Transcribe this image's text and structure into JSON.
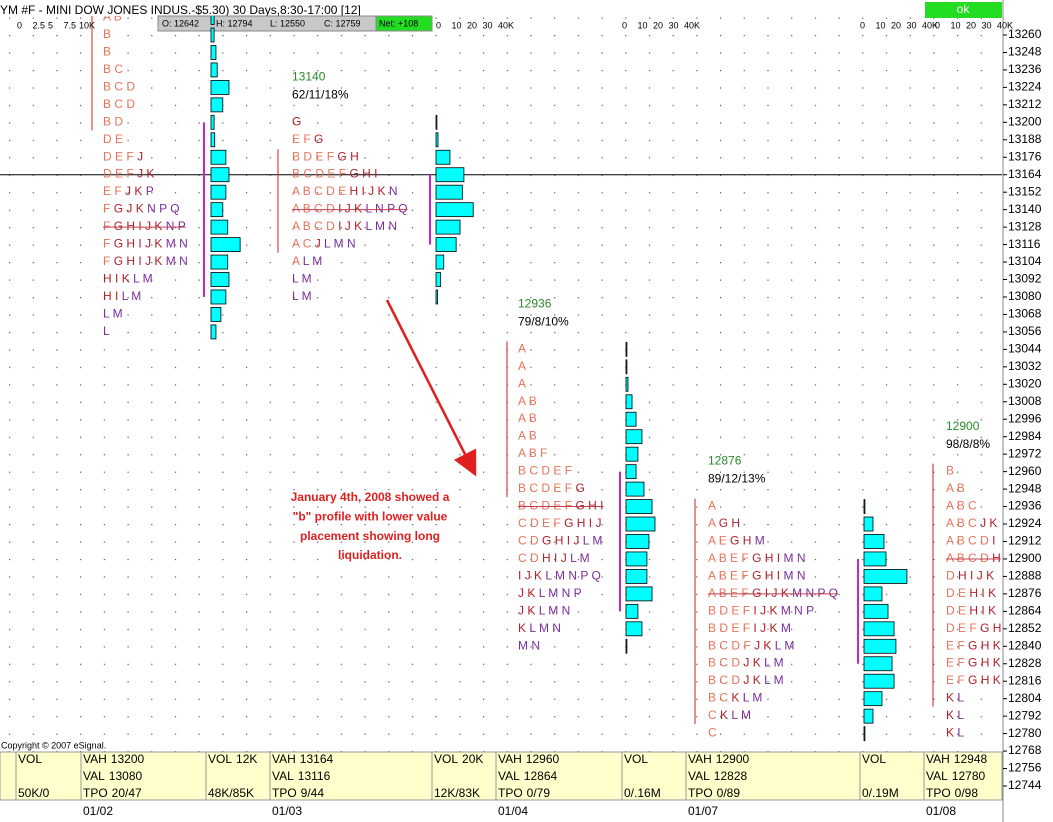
{
  "header": {
    "title": "YM #F - MINI DOW JONES INDUS.-$5.30) 30 Days,8:30-17:00 [12]",
    "quote": [
      "O: 12642",
      "H: 12794",
      "L: 12550",
      "C: 12759"
    ],
    "net": "Net: +108",
    "button": "ok"
  },
  "copyright": "Copyright © 2007 eSignal.",
  "annotation": [
    "January 4th, 2008 showed a",
    "\"b\" profile with lower value",
    "placement showing long",
    "liquidation."
  ],
  "price_axis": {
    "labels": [
      13260,
      13248,
      13236,
      13224,
      13212,
      13200,
      13188,
      13176,
      13164,
      13152,
      13140,
      13128,
      13116,
      13104,
      13092,
      13080,
      13068,
      13056,
      13044,
      13032,
      13020,
      13008,
      12996,
      12984,
      12972,
      12960,
      12948,
      12936,
      12924,
      12912,
      12900,
      12888,
      12876,
      12864,
      12852,
      12840,
      12828,
      12816,
      12804,
      12792,
      12780,
      12768,
      12756,
      12744
    ]
  },
  "crosshair": 13164,
  "profiles": [
    {
      "date": "01/02",
      "scale": [
        0,
        2.5,
        5,
        7.5,
        {
          "value": 10,
          "label": "10K"
        }
      ],
      "range": [
        13272,
        13200
      ],
      "poc": 13128,
      "prices": [
        13272,
        13260,
        13248,
        13236,
        13224,
        13212,
        13200,
        13188,
        13176,
        13164,
        13152,
        13140,
        13128,
        13116,
        13104,
        13092,
        13080,
        13068,
        13056
      ],
      "tpo": [
        "A B",
        "B",
        "B",
        "B C",
        "B C D",
        "B C D",
        "B D",
        "D E",
        "D E F J",
        "D E F J K",
        "E F J K P",
        "F G J K N P Q",
        "F G H I J K N P",
        "F G H I J K M N",
        "F G H I J K M N",
        "H I K L M",
        "H I L M",
        "L M",
        "L"
      ],
      "volume": [
        0.5,
        0.5,
        0.8,
        1,
        2.9,
        1.9,
        0.5,
        0.6,
        2.4,
        2.9,
        2.4,
        1.9,
        2.7,
        4.7,
        2.7,
        2.9,
        2.4,
        1.6,
        0.8
      ]
    },
    {
      "date": "01/03",
      "poc_label": 13140,
      "stats": "62/11/18%",
      "scale": [
        0,
        10,
        20,
        30,
        {
          "value": 40,
          "label": "40K"
        }
      ],
      "range": [
        13176,
        13116
      ],
      "poc": 13140,
      "prices": [
        13200,
        13188,
        13176,
        13164,
        13152,
        13140,
        13128,
        13116,
        13104,
        13092,
        13080
      ],
      "tpo": [
        "G",
        "E F G",
        "B D E F G H",
        "B C D E F G H I",
        "A B C D E H I J K N",
        "A B C D I J K L N P Q",
        "A B C D I J K L M N",
        "A C J L M N",
        "A L M",
        "L M",
        "L M"
      ],
      "volume": [
        0.6,
        1.3,
        9,
        18,
        17,
        24,
        15.5,
        13,
        5,
        3,
        1
      ]
    },
    {
      "date": "01/04",
      "poc_label": 12936,
      "stats": "79/8/10%",
      "scale": [
        0,
        10,
        20,
        30,
        {
          "value": 40,
          "label": "40K"
        }
      ],
      "range": [
        13044,
        12948
      ],
      "poc": 12936,
      "prices": [
        13044,
        13032,
        13020,
        13008,
        12996,
        12984,
        12972,
        12960,
        12948,
        12936,
        12924,
        12912,
        12900,
        12888,
        12876,
        12864,
        12852,
        12840
      ],
      "tpo": [
        "A",
        "A",
        "A",
        "A B",
        "A B",
        "A B",
        "A B F",
        "B C D E F",
        "B C D E F G",
        "B C D E F G H I",
        "C D E F G H I J",
        "C D G H I J L M",
        "C D H I J L M",
        "I J K L M N P Q",
        "J K L M N P",
        "J K L M N",
        "K L M N",
        "M N"
      ],
      "volume": [
        0.6,
        0.6,
        1.3,
        3.9,
        6.5,
        10.3,
        7.7,
        6.5,
        11.6,
        16.8,
        18.7,
        14.8,
        13.5,
        13.5,
        16.8,
        7.7,
        10.3,
        0.6
      ]
    },
    {
      "date": "01/07",
      "poc_label": 12876,
      "stats": "89/12/13%",
      "scale": [
        0,
        10,
        20,
        30,
        {
          "value": 40,
          "label": "40K"
        }
      ],
      "range": [
        12936,
        12792
      ],
      "poc": 12876,
      "prices": [
        12936,
        12924,
        12912,
        12900,
        12888,
        12876,
        12864,
        12852,
        12840,
        12828,
        12816,
        12804,
        12792,
        12780
      ],
      "tpo": [
        "A",
        "A G H",
        "A E G H M",
        "A B E F G H I M N",
        "A B E F G H I M N",
        "A B E F G I J K M N P Q",
        "B D E F I J K M N P",
        "B D E F I J K M",
        "B C D F J K L M",
        "B C D J K L M",
        "B C D J K L M",
        "B C K L M",
        "C K L M",
        "C"
      ],
      "volume": [
        0.6,
        5.8,
        12.9,
        14.2,
        27.7,
        11.6,
        15.5,
        19.4,
        20.6,
        18.1,
        19.4,
        11.6,
        5.8,
        0.6
      ]
    },
    {
      "date": "01/08",
      "poc_label": 12900,
      "stats": "98/8/8%",
      "scale": [
        0,
        10,
        20,
        30,
        {
          "value": 40,
          "label": "40K"
        }
      ],
      "range": [
        12960,
        12804
      ],
      "poc": 12900,
      "prices": [
        12960,
        12948,
        12936,
        12924,
        12912,
        12900,
        12888,
        12876,
        12864,
        12852,
        12840,
        12828,
        12816,
        12804,
        12792,
        12780
      ],
      "tpo": [
        "B",
        "A B",
        "A B C",
        "A B C J K",
        "A B C D I",
        "A B C D H",
        "D H I J K",
        "D E H I K",
        "D E H I K",
        "D E F G H",
        "E F G H K",
        "E F G H K",
        "E F G H K",
        "K L",
        "K L",
        "K L"
      ]
    }
  ],
  "footer": {
    "cells": [
      {
        "top": [
          "VOL"
        ],
        "bottom": [
          "50K/0"
        ]
      },
      {
        "top": [
          "VAH",
          13200
        ],
        "mid": [
          "VAL",
          13080
        ],
        "bottom": [
          "TPO",
          "20/47"
        ]
      },
      {
        "top": [
          "VOL",
          "12K"
        ],
        "bottom": [
          "48K/85K"
        ]
      },
      {
        "top": [
          "VAH",
          13164
        ],
        "mid": [
          "VAL",
          13116
        ],
        "bottom": [
          "TPO",
          "9/44"
        ]
      },
      {
        "top": [
          "VOL",
          "20K"
        ],
        "bottom": [
          "12K/83K"
        ]
      },
      {
        "top": [
          "VAH",
          12960
        ],
        "mid": [
          "VAL",
          12864
        ],
        "bottom": [
          "TPO",
          "0/79"
        ]
      },
      {
        "top": [
          "VOL"
        ],
        "bottom": [
          "0/.16M"
        ]
      },
      {
        "top": [
          "VAH",
          12900
        ],
        "mid": [
          "VAL",
          12828
        ],
        "bottom": [
          "TPO",
          "0/89"
        ]
      },
      {
        "top": [
          "VOL"
        ],
        "bottom": [
          "0/.19M"
        ]
      },
      {
        "top": [
          "VAH",
          12948
        ],
        "mid": [
          "VAL",
          12780
        ],
        "bottom": [
          "TPO",
          "0/98"
        ]
      }
    ]
  }
}
